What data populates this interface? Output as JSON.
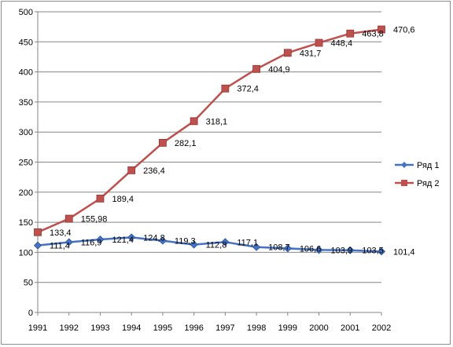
{
  "chart_data": {
    "type": "line",
    "categories": [
      "1991",
      "1992",
      "1993",
      "1994",
      "1995",
      "1996",
      "1997",
      "1998",
      "1999",
      "2000",
      "2001",
      "2002"
    ],
    "ylim": [
      0,
      500
    ],
    "yticks": [
      0,
      50,
      100,
      150,
      200,
      250,
      300,
      350,
      400,
      450,
      500
    ],
    "grid": true,
    "legend_position": "right",
    "series": [
      {
        "name": "Ряд 1",
        "color": "#4472c4",
        "marker": "diamond",
        "values": [
          111.4,
          116.9,
          121.4,
          124.8,
          119.3,
          112.8,
          117.1,
          108.7,
          106.6,
          103.9,
          103.5,
          101.4
        ],
        "labels": [
          "111,4",
          "116,9",
          "121,4",
          "124,8",
          "119,3",
          "112,8",
          "117,1",
          "108,7",
          "106,6",
          "103,9",
          "103,5",
          "101,4"
        ]
      },
      {
        "name": "Ряд 2",
        "color": "#c0504d",
        "marker": "square",
        "values": [
          133.4,
          155.98,
          189.4,
          236.4,
          282.1,
          318.1,
          372.4,
          404.9,
          431.7,
          448.4,
          463.8,
          470.6
        ],
        "labels": [
          "133,4",
          "155,98",
          "189,4",
          "236,4",
          "282,1",
          "318,1",
          "372,4",
          "404,9",
          "431,7",
          "448,4",
          "463,8",
          "470,6"
        ]
      }
    ]
  }
}
